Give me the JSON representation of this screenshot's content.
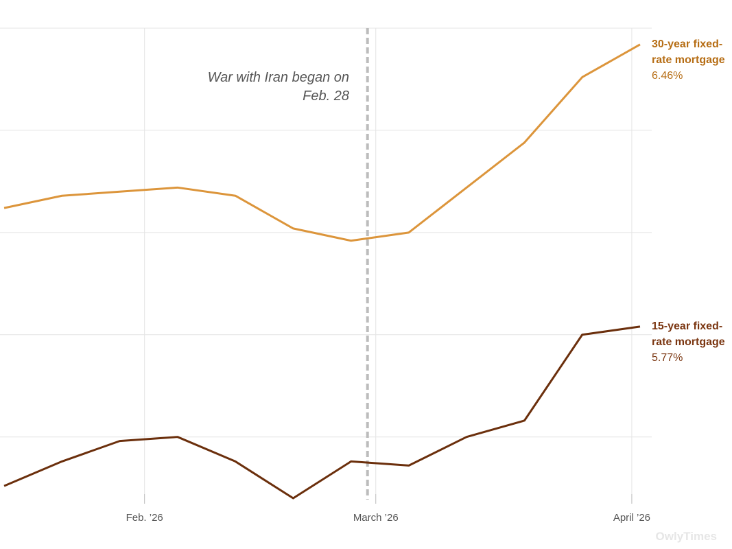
{
  "chart_data": {
    "type": "line",
    "annotation": "War with Iran began on Feb. 28",
    "annotation_x": "2026-02-28",
    "x": [
      "2026-01-15",
      "2026-01-22",
      "2026-01-29",
      "2026-02-05",
      "2026-02-12",
      "2026-02-19",
      "2026-02-26",
      "2026-03-05",
      "2026-03-12",
      "2026-03-19",
      "2026-03-26",
      "2026-04-02"
    ],
    "series": [
      {
        "name": "30-year fixed-rate mortgage",
        "color": "#dc953b",
        "label_color": "#b66d14",
        "values": [
          6.06,
          6.09,
          6.1,
          6.11,
          6.09,
          6.01,
          5.98,
          6.0,
          6.11,
          6.22,
          6.38,
          6.46
        ],
        "value_labels": {
          "11": "6.46%"
        }
      },
      {
        "name": "15-year fixed-rate mortgage",
        "color": "#6b2f0c",
        "label_color": "#7a3510",
        "values": [
          5.38,
          5.44,
          5.49,
          5.5,
          5.44,
          5.35,
          5.44,
          5.43,
          5.5,
          5.54,
          5.75,
          5.77
        ],
        "value_labels": {
          "11": "5.77%"
        }
      }
    ],
    "xlim": [
      "2026-01-14",
      "2026-04-03"
    ],
    "xticks": [
      {
        "value": "2026-02-01",
        "label": "Feb. ’26"
      },
      {
        "value": "2026-03-01",
        "label": "March ’26"
      },
      {
        "value": "2026-04-01",
        "label": "April ’26"
      }
    ],
    "ylim": [
      5.34,
      6.5
    ],
    "yticks": [
      5.5,
      5.75,
      6,
      6.25,
      6.5
    ],
    "grid": true,
    "watermark": "OwlyTimes"
  }
}
